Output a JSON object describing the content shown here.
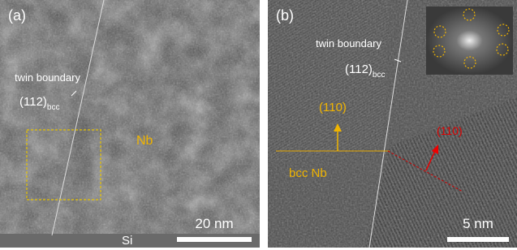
{
  "panels": [
    {
      "label": "(a)",
      "twin_label": "twin boundary",
      "plane": "(112)",
      "plane_sub": "bcc",
      "material": "Nb",
      "scale": "20 nm",
      "substrate": "Si"
    },
    {
      "label": "(b)",
      "twin_label": "twin boundary",
      "plane": "(112)",
      "plane_sub": "bcc",
      "plane_orange": "(110)",
      "phase": "bcc Nb",
      "plane_red": "(110)",
      "scale": "5 nm"
    }
  ]
}
